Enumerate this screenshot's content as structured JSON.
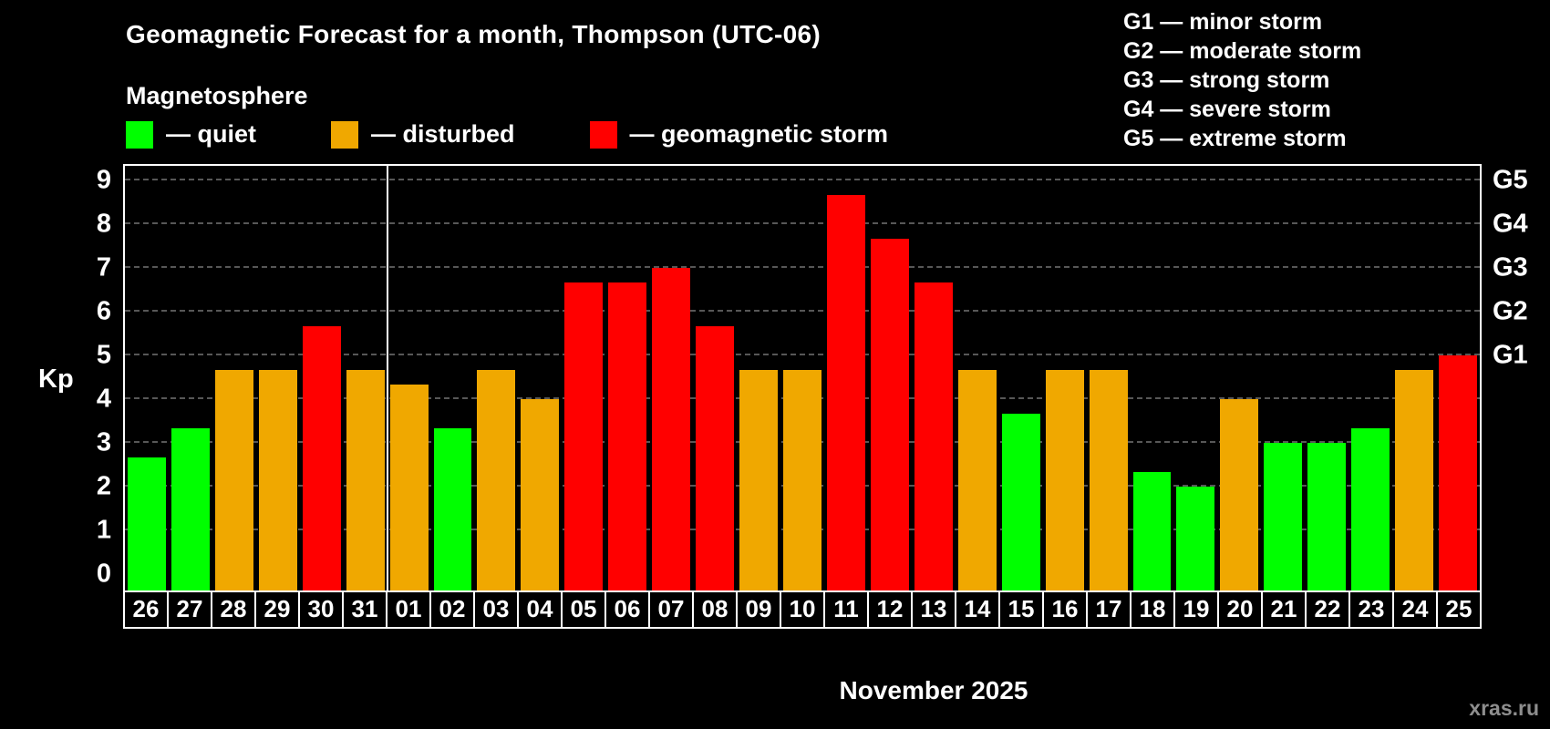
{
  "header": {
    "title": "Geomagnetic Forecast for a month, Thompson (UTC-06)",
    "subtitle": "Magnetosphere"
  },
  "legend": {
    "quiet": "— quiet",
    "disturbed": "— disturbed",
    "storm": "— geomagnetic storm"
  },
  "g_legend": [
    "G1 — minor storm",
    "G2 — moderate storm",
    "G3 — strong storm",
    "G4 — severe storm",
    "G5 — extreme storm"
  ],
  "axis": {
    "y_label": "Kp",
    "y_ticks": [
      0,
      1,
      2,
      3,
      4,
      5,
      6,
      7,
      8,
      9
    ],
    "right_ticks": [
      {
        "label": "G1",
        "value": 5
      },
      {
        "label": "G2",
        "value": 6
      },
      {
        "label": "G3",
        "value": 7
      },
      {
        "label": "G4",
        "value": 8
      },
      {
        "label": "G5",
        "value": 9
      }
    ],
    "x_month_label": "November 2025"
  },
  "watermark": "xras.ru",
  "colors": {
    "quiet": "#00ff00",
    "disturbed": "#f0a800",
    "storm": "#ff0000",
    "background": "#000000",
    "text": "#ffffff",
    "grid": "#575757"
  },
  "chart_data": {
    "type": "bar",
    "title": "Geomagnetic Forecast for a month, Thompson (UTC-06)",
    "subtitle": "Magnetosphere",
    "xlabel": "November 2025",
    "ylabel": "Kp",
    "ylim": [
      0,
      9
    ],
    "legend_position": "top-left",
    "grid": "dashed-horizontal",
    "categories": [
      "26",
      "27",
      "28",
      "29",
      "30",
      "31",
      "01",
      "02",
      "03",
      "04",
      "05",
      "06",
      "07",
      "08",
      "09",
      "10",
      "11",
      "12",
      "13",
      "14",
      "15",
      "16",
      "17",
      "18",
      "19",
      "20",
      "21",
      "22",
      "23",
      "24",
      "25"
    ],
    "values": [
      2.67,
      3.33,
      4.67,
      4.67,
      5.67,
      4.67,
      4.33,
      3.33,
      4.67,
      4.0,
      6.67,
      6.67,
      7.0,
      5.67,
      4.67,
      4.67,
      8.67,
      7.67,
      6.67,
      4.67,
      3.67,
      4.67,
      4.67,
      2.33,
      2.0,
      4.0,
      3.0,
      3.0,
      3.33,
      4.67,
      5.0
    ],
    "statuses": [
      "quiet",
      "quiet",
      "disturbed",
      "disturbed",
      "storm",
      "disturbed",
      "disturbed",
      "quiet",
      "disturbed",
      "disturbed",
      "storm",
      "storm",
      "storm",
      "storm",
      "disturbed",
      "disturbed",
      "storm",
      "storm",
      "storm",
      "disturbed",
      "quiet",
      "disturbed",
      "disturbed",
      "quiet",
      "quiet",
      "disturbed",
      "quiet",
      "quiet",
      "quiet",
      "disturbed",
      "storm"
    ],
    "month_separator_after_index": 5
  }
}
